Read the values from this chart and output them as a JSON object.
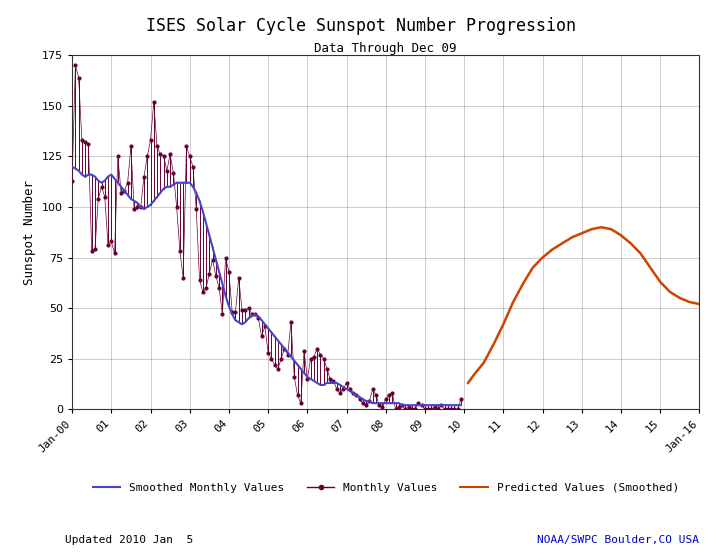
{
  "title": "ISES Solar Cycle Sunspot Number Progression",
  "subtitle": "Data Through Dec 09",
  "ylabel": "Sunspot Number",
  "footer_left": "Updated 2010 Jan  5",
  "footer_right": "NOAA/SWPC Boulder,CO USA",
  "footer_right_color": "#0000cc",
  "background_color": "#ffffff",
  "grid_color": "#888888",
  "ylim": [
    0,
    175
  ],
  "yticks": [
    0,
    25,
    50,
    75,
    100,
    125,
    150,
    175
  ],
  "x_start_year": 2000,
  "x_end_year": 2016,
  "smoothed_color": "#4444cc",
  "monthly_color": "#660033",
  "predicted_color": "#cc4400",
  "smoothed_monthly": [
    120,
    119,
    118,
    116,
    115,
    116,
    116,
    115,
    113,
    112,
    113,
    115,
    116,
    114,
    112,
    110,
    108,
    106,
    104,
    103,
    102,
    100,
    99,
    100,
    101,
    103,
    105,
    107,
    109,
    110,
    110,
    111,
    112,
    112,
    112,
    112,
    112,
    110,
    107,
    103,
    98,
    92,
    86,
    80,
    74,
    68,
    62,
    56,
    51,
    47,
    44,
    43,
    42,
    43,
    45,
    46,
    47,
    46,
    44,
    42,
    40,
    38,
    36,
    34,
    32,
    30,
    28,
    26,
    24,
    22,
    20,
    18,
    16,
    15,
    14,
    13,
    12,
    12,
    13,
    13,
    13,
    13,
    12,
    11,
    10,
    9,
    8,
    7,
    6,
    5,
    4,
    4,
    3,
    3,
    3,
    3,
    3,
    3,
    3,
    3,
    3,
    2,
    2,
    2,
    2,
    2,
    2,
    2,
    2,
    2,
    2,
    2,
    2,
    2,
    2,
    2,
    2,
    2,
    2,
    2
  ],
  "monthly_values_y": [
    113,
    170,
    164,
    133,
    132,
    131,
    78,
    79,
    104,
    110,
    105,
    81,
    83,
    77,
    125,
    107,
    108,
    112,
    130,
    99,
    100,
    100,
    115,
    125,
    133,
    152,
    130,
    126,
    125,
    118,
    126,
    117,
    100,
    78,
    65,
    130,
    125,
    120,
    99,
    64,
    58,
    60,
    67,
    74,
    66,
    60,
    47,
    75,
    68,
    48,
    48,
    65,
    49,
    49,
    50,
    47,
    47,
    45,
    36,
    41,
    28,
    25,
    22,
    20,
    25,
    30,
    27,
    43,
    16,
    7,
    3,
    29,
    15,
    25,
    26,
    30,
    27,
    25,
    20,
    15,
    14,
    10,
    8,
    10,
    13,
    10,
    8,
    7,
    5,
    3,
    2,
    4,
    10,
    7,
    2,
    1,
    5,
    7,
    8,
    0,
    1,
    2,
    0,
    1,
    0,
    0,
    3,
    2,
    0,
    0,
    0,
    1,
    0,
    2,
    0,
    0,
    0,
    0,
    0,
    5
  ],
  "predicted_x": [
    10.1,
    10.25,
    10.5,
    10.75,
    11.0,
    11.25,
    11.5,
    11.75,
    12.0,
    12.25,
    12.5,
    12.75,
    13.0,
    13.25,
    13.5,
    13.75,
    14.0,
    14.25,
    14.5,
    14.75,
    15.0,
    15.25,
    15.5,
    15.75,
    16.0
  ],
  "predicted_y": [
    13,
    17,
    23,
    32,
    42,
    53,
    62,
    70,
    75,
    79,
    82,
    85,
    87,
    89,
    90,
    89,
    86,
    82,
    77,
    70,
    63,
    58,
    55,
    53,
    52
  ],
  "legend_blue_label": "Smoothed Monthly Values",
  "legend_monthly_label": "Monthly Values",
  "legend_predicted_label": "Predicted Values (Smoothed)"
}
